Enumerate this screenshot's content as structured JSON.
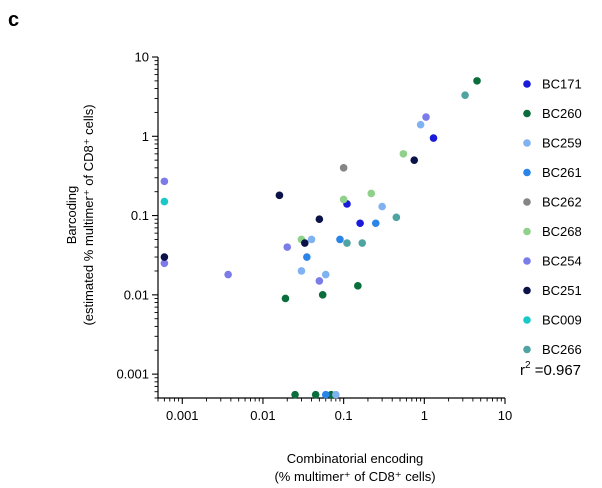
{
  "panel_label": "c",
  "annotation": {
    "prefix": "r",
    "sup": "2",
    "suffix": " =0.967"
  },
  "chart_data": {
    "type": "scatter",
    "title": "",
    "xlabel": [
      "Combinatorial encoding",
      "(% multimer⁺ of CD8⁺ cells)"
    ],
    "ylabel": [
      "Barcoding",
      "(estimated % multimer⁺ of CD8⁺ cells)"
    ],
    "xscale": "log",
    "yscale": "log",
    "xlim": [
      0.0005,
      10
    ],
    "ylim": [
      0.0005,
      10
    ],
    "xticks": [
      {
        "value": 0.001,
        "label": "0.001"
      },
      {
        "value": 0.01,
        "label": "0.01"
      },
      {
        "value": 0.1,
        "label": "0.1"
      },
      {
        "value": 1,
        "label": "1"
      },
      {
        "value": 10,
        "label": "10"
      }
    ],
    "yticks": [
      {
        "value": 0.001,
        "label": "0.001"
      },
      {
        "value": 0.01,
        "label": "0.01"
      },
      {
        "value": 0.1,
        "label": "0.1"
      },
      {
        "value": 1,
        "label": "1"
      },
      {
        "value": 10,
        "label": "10"
      }
    ],
    "grid": false,
    "legend_position": "right",
    "series": [
      {
        "name": "BC171",
        "color": "#1a1adb",
        "points": [
          [
            1.3,
            0.95
          ],
          [
            0.16,
            0.08
          ],
          [
            0.11,
            0.14
          ]
        ]
      },
      {
        "name": "BC260",
        "color": "#0a6e3c",
        "points": [
          [
            4.5,
            5.0
          ],
          [
            0.15,
            0.013
          ],
          [
            0.055,
            0.01
          ],
          [
            0.019,
            0.009
          ],
          [
            0.025,
            0.00055
          ],
          [
            0.045,
            0.00055
          ],
          [
            0.07,
            0.00055
          ]
        ]
      },
      {
        "name": "BC259",
        "color": "#7fb2f0",
        "points": [
          [
            0.9,
            1.4
          ],
          [
            0.3,
            0.13
          ],
          [
            0.04,
            0.05
          ],
          [
            0.03,
            0.02
          ],
          [
            0.06,
            0.018
          ],
          [
            0.08,
            0.00055
          ]
        ]
      },
      {
        "name": "BC261",
        "color": "#2b84e8",
        "points": [
          [
            0.25,
            0.08
          ],
          [
            0.09,
            0.05
          ],
          [
            0.035,
            0.03
          ],
          [
            0.06,
            0.00055
          ]
        ]
      },
      {
        "name": "BC262",
        "color": "#858585",
        "points": [
          [
            0.1,
            0.4
          ]
        ]
      },
      {
        "name": "BC268",
        "color": "#8fd08a",
        "points": [
          [
            0.55,
            0.6
          ],
          [
            0.22,
            0.19
          ],
          [
            0.1,
            0.16
          ],
          [
            0.03,
            0.05
          ]
        ]
      },
      {
        "name": "BC254",
        "color": "#7b7bea",
        "points": [
          [
            1.05,
            1.75
          ],
          [
            0.0006,
            0.27
          ],
          [
            0.0006,
            0.025
          ],
          [
            0.0037,
            0.018
          ],
          [
            0.02,
            0.04
          ],
          [
            0.05,
            0.015
          ]
        ]
      },
      {
        "name": "BC251",
        "color": "#0b1248",
        "points": [
          [
            0.75,
            0.5
          ],
          [
            0.016,
            0.18
          ],
          [
            0.05,
            0.09
          ],
          [
            0.033,
            0.045
          ],
          [
            0.0006,
            0.03
          ]
        ]
      },
      {
        "name": "BC009",
        "color": "#1ac8c8",
        "points": [
          [
            0.0006,
            0.15
          ]
        ]
      },
      {
        "name": "BC266",
        "color": "#4fa3a0",
        "points": [
          [
            3.2,
            3.3
          ],
          [
            0.45,
            0.095
          ],
          [
            0.17,
            0.045
          ],
          [
            0.11,
            0.045
          ]
        ]
      }
    ]
  }
}
